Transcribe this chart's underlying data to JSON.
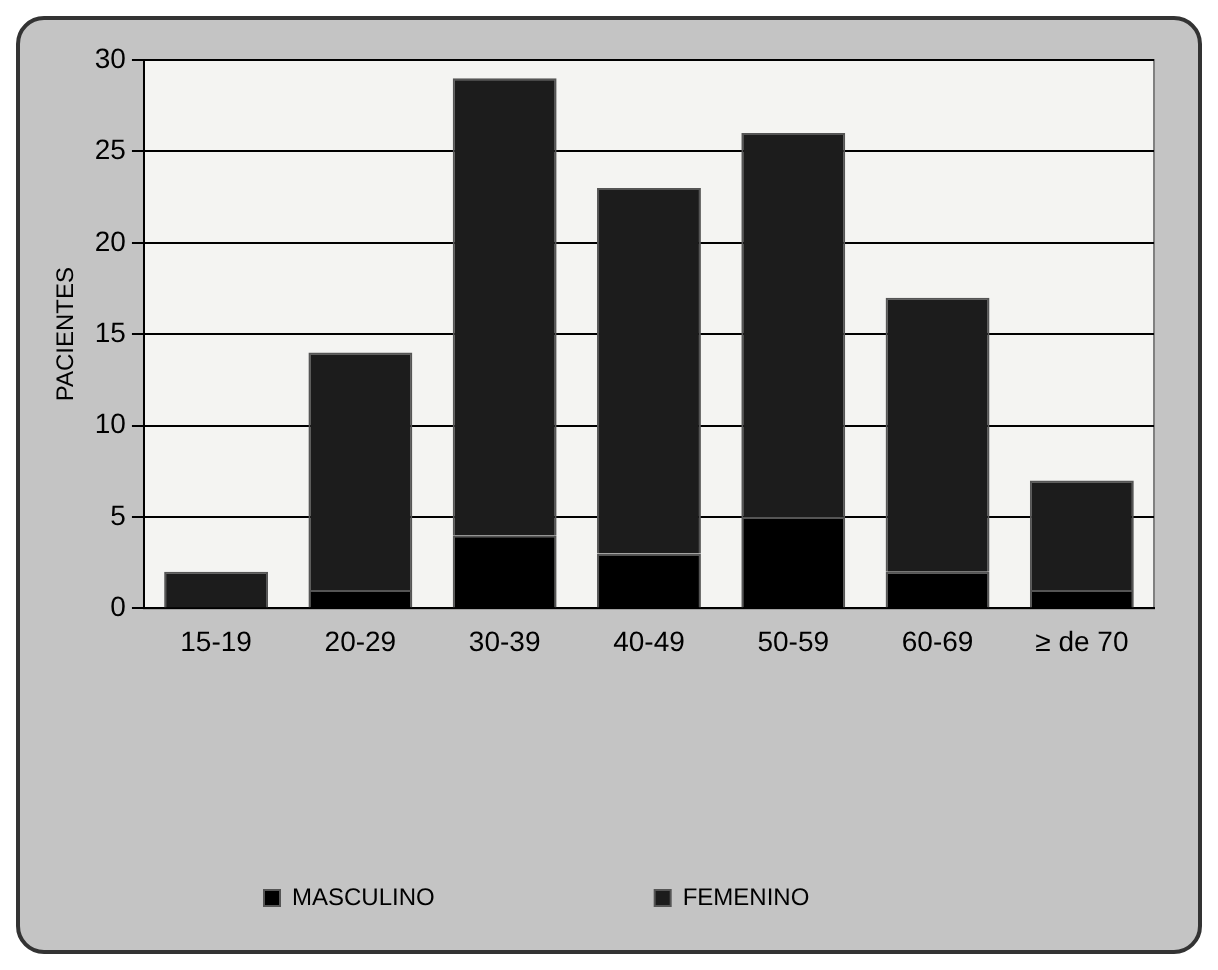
{
  "chart_data": {
    "type": "bar",
    "ylabel": "PACIENTES",
    "categories": [
      "15-19",
      "20-29",
      "30-39",
      "40-49",
      "50-59",
      "60-69",
      "≥ de 70"
    ],
    "series": [
      {
        "name": "MASCULINO",
        "color": "#000000",
        "values": [
          0,
          1,
          4,
          3,
          5,
          2,
          1
        ]
      },
      {
        "name": "FEMENINO",
        "color": "#1c1c1c",
        "values": [
          2,
          13,
          25,
          20,
          21,
          15,
          6
        ]
      }
    ],
    "stacked": true,
    "ylim": [
      0,
      30
    ],
    "yticks": [
      0,
      5,
      10,
      15,
      20,
      25,
      30
    ],
    "grid": "y",
    "legend": "bottom"
  }
}
